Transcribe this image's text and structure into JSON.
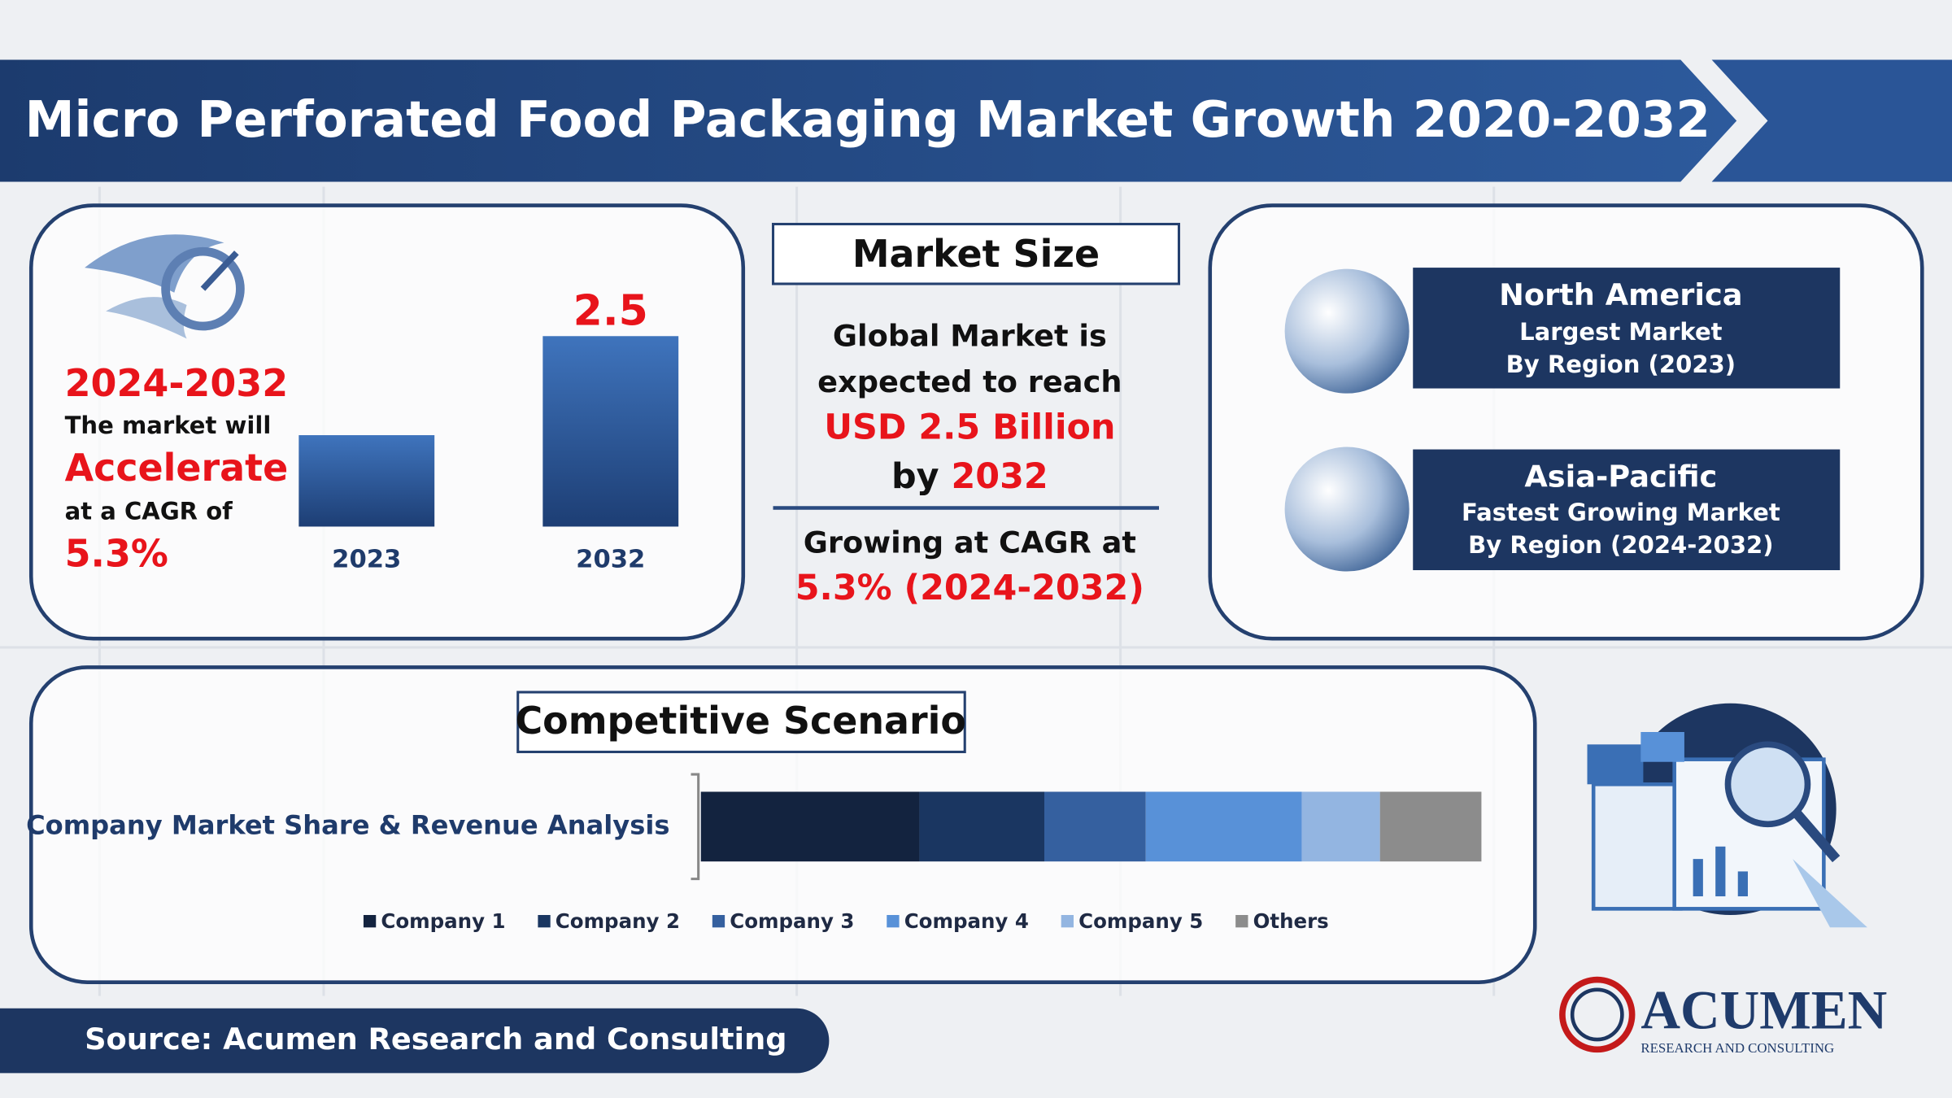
{
  "title": "Micro Perforated Food Packaging Market Growth 2020-2032",
  "growth": {
    "period": "2024-2032",
    "line1": "The market will",
    "highlight": "Accelerate",
    "line2": "at a CAGR of",
    "cagr": "5.3%"
  },
  "market_size": {
    "heading": "Market Size",
    "line1": "Global Market is",
    "line2": "expected to reach",
    "value": "USD 2.5 Billion",
    "by": "by",
    "year": "2032",
    "cagr_label": "Growing at CAGR at",
    "cagr": "5.3% (2024-2032)"
  },
  "regions": [
    {
      "name": "North America",
      "line1": "Largest Market",
      "line2": "By Region (2023)"
    },
    {
      "name": "Asia-Pacific",
      "line1": "Fastest Growing Market",
      "line2": "By Region (2024-2032)"
    }
  ],
  "competitive": {
    "heading": "Competitive Scenario"
  },
  "source": "Source: Acumen Research and Consulting",
  "logo": {
    "name": "ACUMEN",
    "tagline": "RESEARCH AND CONSULTING"
  },
  "chart_data": [
    {
      "type": "bar",
      "categories": [
        "2023",
        "2032"
      ],
      "values": [
        1.2,
        2.5
      ],
      "value_labels": [
        null,
        "2.5"
      ],
      "color": "#2f5d9e"
    },
    {
      "type": "stacked-bar",
      "categories": [
        "Company Market Share & Revenue Analysis"
      ],
      "series": [
        {
          "name": "Company 1",
          "color": "#13233f",
          "values": [
            28
          ]
        },
        {
          "name": "Company 2",
          "color": "#1a3661",
          "values": [
            16
          ]
        },
        {
          "name": "Company 3",
          "color": "#35609f",
          "values": [
            13
          ]
        },
        {
          "name": "Company 4",
          "color": "#5891d8",
          "values": [
            20
          ]
        },
        {
          "name": "Company 5",
          "color": "#93b5e1",
          "values": [
            10
          ]
        },
        {
          "name": "Others",
          "color": "#8c8c8c",
          "values": [
            13
          ]
        }
      ]
    }
  ]
}
